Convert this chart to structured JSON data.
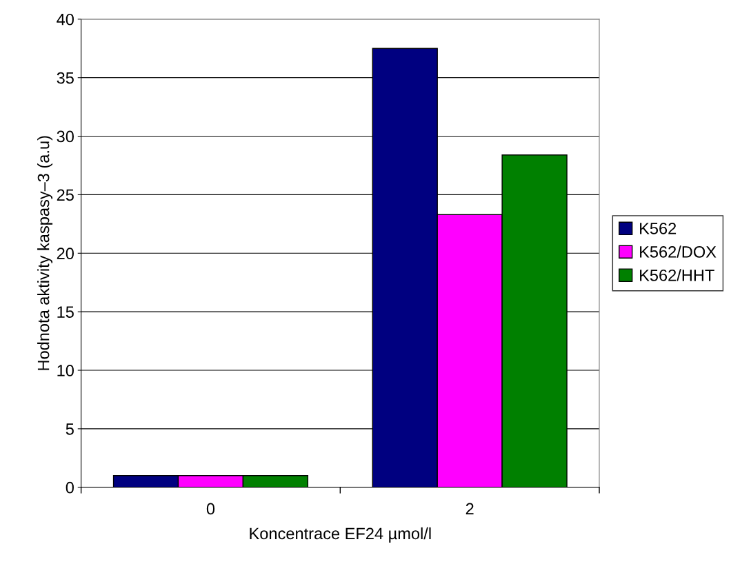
{
  "chart_data": {
    "type": "bar",
    "xlabel": "Koncentrace EF24 µmol/l",
    "ylabel": "Hodnota aktivity kaspasy–3 (a.u)",
    "categories": [
      "0",
      "2"
    ],
    "series": [
      {
        "name": "K562",
        "color": "#000080",
        "values": [
          1.0,
          37.5
        ]
      },
      {
        "name": "K562/DOX",
        "color": "#ff00ff",
        "values": [
          1.0,
          23.3
        ]
      },
      {
        "name": "K562/HHT",
        "color": "#008000",
        "values": [
          1.0,
          28.4
        ]
      }
    ],
    "ylim": [
      0,
      40
    ],
    "yticks": [
      0,
      5,
      10,
      15,
      20,
      25,
      30,
      35,
      40
    ],
    "grid": "y",
    "legend": "right"
  }
}
